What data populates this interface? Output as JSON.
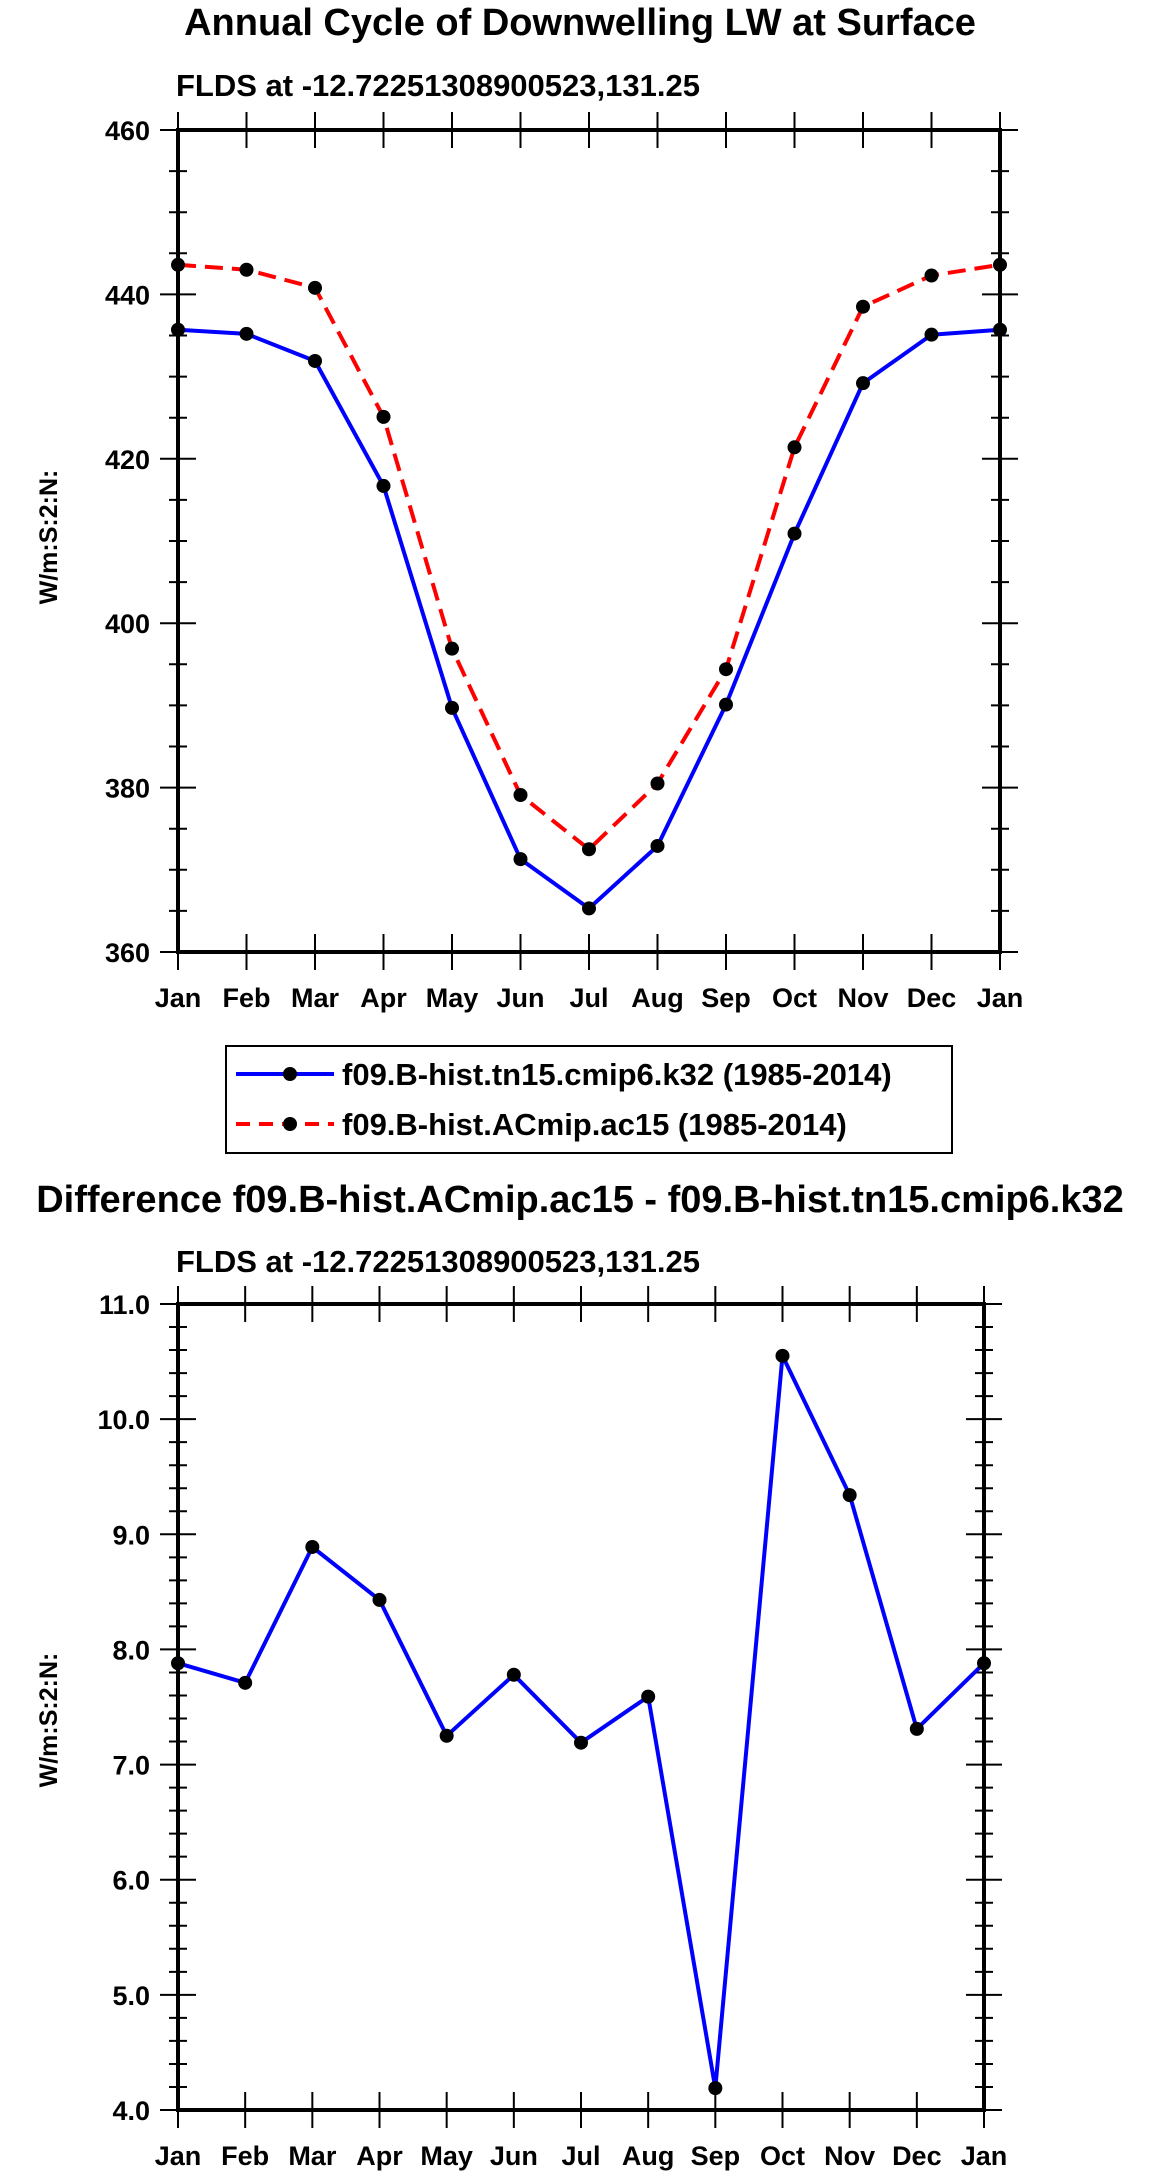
{
  "chart_data": [
    {
      "type": "line",
      "title": "Annual Cycle of Downwelling LW at Surface",
      "subtitle": "FLDS at -12.72251308900523,131.25",
      "ylabel": "W/m:S:2:N:",
      "xlabel": "",
      "categories": [
        "Jan",
        "Feb",
        "Mar",
        "Apr",
        "May",
        "Jun",
        "Jul",
        "Aug",
        "Sep",
        "Oct",
        "Nov",
        "Dec",
        "Jan"
      ],
      "ylim": [
        360,
        460
      ],
      "yticks": [
        "360",
        "380",
        "400",
        "420",
        "440",
        "460"
      ],
      "series": [
        {
          "name": "f09.B-hist.tn15.cmip6.k32 (1985-2014)",
          "color": "#0000ff",
          "dash": "solid",
          "values": [
            435.7,
            435.2,
            431.9,
            416.7,
            389.7,
            371.3,
            365.3,
            372.9,
            390.1,
            410.9,
            429.2,
            435.1,
            435.7
          ]
        },
        {
          "name": "f09.B-hist.ACmip.ac15 (1985-2014)",
          "color": "#ff0000",
          "dash": "dashed",
          "values": [
            443.6,
            443.0,
            440.8,
            425.1,
            396.9,
            379.1,
            372.5,
            380.5,
            394.4,
            421.4,
            438.5,
            442.3,
            443.6
          ]
        }
      ],
      "legend_position": "below"
    },
    {
      "type": "line",
      "title": "Difference f09.B-hist.ACmip.ac15 - f09.B-hist.tn15.cmip6.k32",
      "subtitle": "FLDS at -12.72251308900523,131.25",
      "ylabel": "W/m:S:2:N:",
      "xlabel": "",
      "categories": [
        "Jan",
        "Feb",
        "Mar",
        "Apr",
        "May",
        "Jun",
        "Jul",
        "Aug",
        "Sep",
        "Oct",
        "Nov",
        "Dec",
        "Jan"
      ],
      "ylim": [
        4.0,
        11.0
      ],
      "yticks": [
        "4.0",
        "5.0",
        "6.0",
        "7.0",
        "8.0",
        "9.0",
        "10.0",
        "11.0"
      ],
      "series": [
        {
          "name": "difference",
          "color": "#0000ff",
          "dash": "solid",
          "values": [
            7.88,
            7.71,
            8.89,
            8.43,
            7.25,
            7.78,
            7.19,
            7.59,
            4.19,
            10.55,
            9.34,
            7.31,
            7.88
          ]
        }
      ]
    }
  ]
}
